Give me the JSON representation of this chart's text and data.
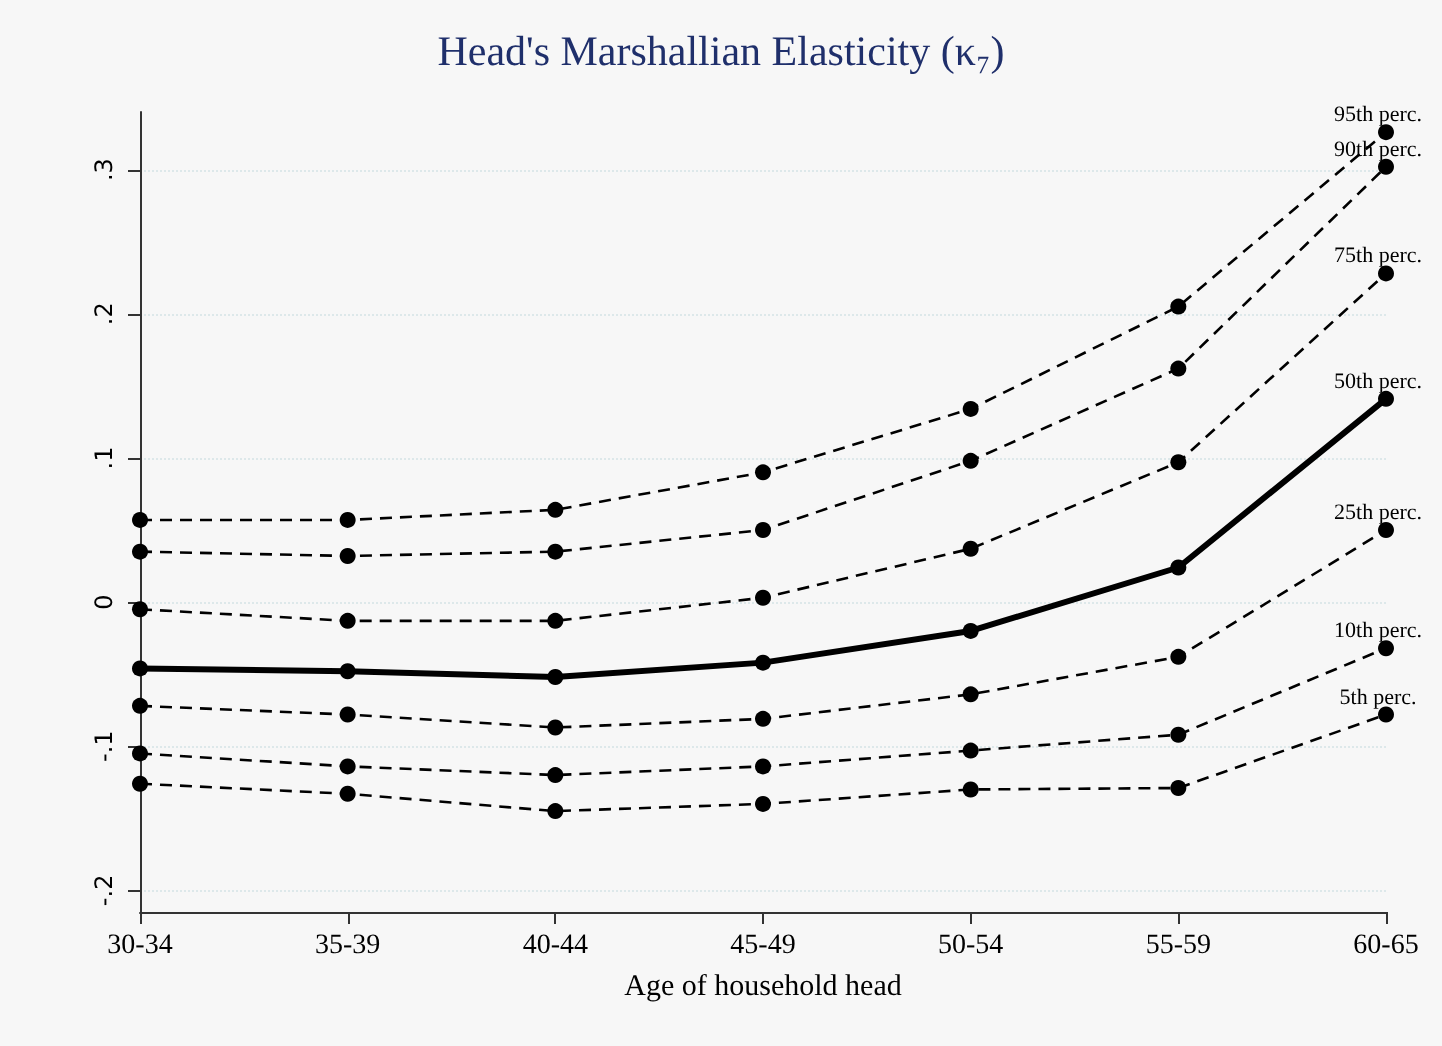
{
  "chart_data": {
    "type": "line",
    "title": "Head's Marshallian Elasticity (κ₇)",
    "xlabel": "Age of household head",
    "categories": [
      "30-34",
      "35-39",
      "40-44",
      "45-49",
      "50-54",
      "55-59",
      "60-65"
    ],
    "series": [
      {
        "name": "95th perc.",
        "color": "#000000",
        "line_style": "dashed",
        "values": [
          0.057,
          0.057,
          0.064,
          0.09,
          0.134,
          0.205,
          0.326
        ]
      },
      {
        "name": "90th perc.",
        "color": "#000000",
        "line_style": "dashed",
        "values": [
          0.035,
          0.032,
          0.035,
          0.05,
          0.098,
          0.162,
          0.302
        ]
      },
      {
        "name": "75th perc.",
        "color": "#000000",
        "line_style": "dashed",
        "values": [
          -0.005,
          -0.013,
          -0.013,
          0.003,
          0.037,
          0.097,
          0.228
        ]
      },
      {
        "name": "50th perc.",
        "color": "#000000",
        "line_style": "solid",
        "values": [
          -0.046,
          -0.048,
          -0.052,
          -0.042,
          -0.02,
          0.024,
          0.141
        ]
      },
      {
        "name": "25th perc.",
        "color": "#000000",
        "line_style": "dashed",
        "values": [
          -0.072,
          -0.078,
          -0.087,
          -0.081,
          -0.064,
          -0.038,
          0.05
        ]
      },
      {
        "name": "10th perc.",
        "color": "#000000",
        "line_style": "dashed",
        "values": [
          -0.105,
          -0.114,
          -0.12,
          -0.114,
          -0.103,
          -0.092,
          -0.032
        ]
      },
      {
        "name": "5th perc.",
        "color": "#000000",
        "line_style": "dashed",
        "values": [
          -0.126,
          -0.133,
          -0.145,
          -0.14,
          -0.13,
          -0.129,
          -0.078
        ]
      }
    ],
    "ylim": [
      -0.215,
      0.34
    ],
    "yticks": [
      {
        "value": -0.2,
        "label": "-.2"
      },
      {
        "value": -0.1,
        "label": "-.1"
      },
      {
        "value": 0,
        "label": "0"
      },
      {
        "value": 0.1,
        "label": ".1"
      },
      {
        "value": 0.2,
        "label": ".2"
      },
      {
        "value": 0.3,
        "label": ".3"
      }
    ],
    "grid": "y",
    "marker": "circle",
    "legend": false
  }
}
